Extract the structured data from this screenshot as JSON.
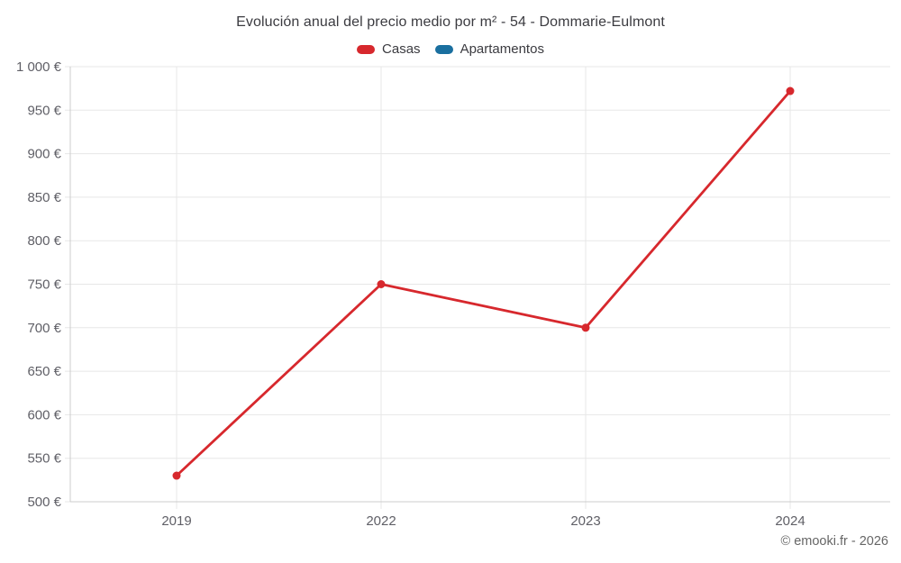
{
  "title": "Evolución anual del precio medio por m² - 54 - Dommarie-Eulmont",
  "footer": "© emooki.fr - 2026",
  "chart_data": {
    "type": "line",
    "title": "Evolución anual del precio medio por m² - 54 - Dommarie-Eulmont",
    "xlabel": "",
    "ylabel": "",
    "categories": [
      "2019",
      "2022",
      "2023",
      "2024"
    ],
    "series": [
      {
        "name": "Casas",
        "color": "#d7282d",
        "values": [
          530,
          750,
          700,
          972
        ]
      },
      {
        "name": "Apartamentos",
        "color": "#1a6f9f",
        "values": []
      }
    ],
    "ylim": [
      500,
      1000
    ],
    "yticks": [
      {
        "value": 500,
        "label": "500 €"
      },
      {
        "value": 550,
        "label": "550 €"
      },
      {
        "value": 600,
        "label": "600 €"
      },
      {
        "value": 650,
        "label": "650 €"
      },
      {
        "value": 700,
        "label": "700 €"
      },
      {
        "value": 750,
        "label": "750 €"
      },
      {
        "value": 800,
        "label": "800 €"
      },
      {
        "value": 850,
        "label": "850 €"
      },
      {
        "value": 900,
        "label": "900 €"
      },
      {
        "value": 950,
        "label": "950 €"
      },
      {
        "value": 1000,
        "label": "1 000 €"
      }
    ],
    "grid": true,
    "legend_position": "top",
    "colors": {
      "gridline": "#e7e7e7",
      "axis_line": "#cccccc",
      "tick_label": "#5f5f66",
      "title_text": "#3b3b40",
      "footer_text": "#666666"
    }
  }
}
